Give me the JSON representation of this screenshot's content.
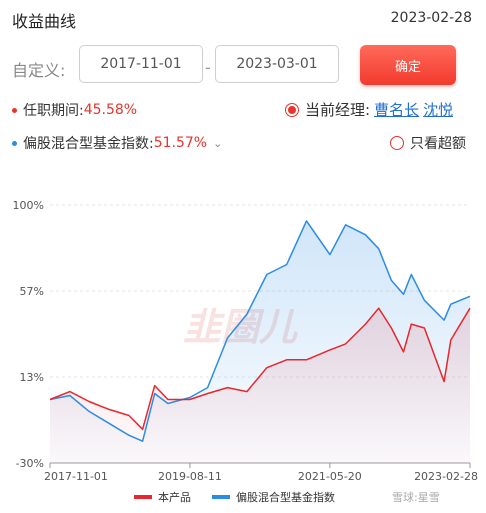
{
  "header": {
    "title": "收益曲线",
    "date": "2023-02-28"
  },
  "filter": {
    "label": "自定义:",
    "start_date": "2017-11-01",
    "end_date": "2023-03-01",
    "confirm_label": "确定"
  },
  "stats": {
    "tenure_label": "任职期间:",
    "tenure_value": "45.58%",
    "benchmark_label": "偏股混合型基金指数:",
    "benchmark_value": "51.57%",
    "current_manager_label": "当前经理:",
    "managers": [
      "曹名长",
      "沈悦"
    ],
    "only_exceed_label": "只看超额"
  },
  "colors": {
    "accent": "#e8342b",
    "product": "#e8262e",
    "benchmark": "#2b8ce6"
  },
  "watermark": "韭圈儿",
  "footer": {
    "brand": "雪球:星雪"
  },
  "chart_data": {
    "type": "line",
    "x_tick_labels": [
      "2017-11-01",
      "2019-08-11",
      "2021-05-20",
      "2023-02-28"
    ],
    "y_tick_labels": [
      "100%",
      "57%",
      "13%",
      "-30%"
    ],
    "ylim": [
      -30,
      100
    ],
    "grid": true,
    "legend_position": "bottom",
    "series": [
      {
        "name": "本产品",
        "color": "#e8262e",
        "x": [
          "2017-11-01",
          "2018-02-01",
          "2018-05-01",
          "2018-08-01",
          "2018-11-01",
          "2019-01-04",
          "2019-03-01",
          "2019-05-01",
          "2019-08-11",
          "2019-11-01",
          "2020-02-01",
          "2020-05-01",
          "2020-08-01",
          "2020-11-01",
          "2021-02-01",
          "2021-05-20",
          "2021-08-01",
          "2021-11-01",
          "2022-01-01",
          "2022-03-01",
          "2022-04-26",
          "2022-06-01",
          "2022-08-01",
          "2022-10-31",
          "2022-12-01",
          "2023-02-28"
        ],
        "values": [
          2,
          6,
          1,
          -3,
          -6,
          -13,
          9,
          2,
          2,
          5,
          8,
          6,
          18,
          22,
          22,
          27,
          30,
          40,
          48,
          38,
          26,
          40,
          38,
          11,
          32,
          48
        ]
      },
      {
        "name": "偏股混合型基金指数",
        "color": "#2b8ce6",
        "x": [
          "2017-11-01",
          "2018-02-01",
          "2018-05-01",
          "2018-08-01",
          "2018-11-01",
          "2019-01-04",
          "2019-03-01",
          "2019-05-01",
          "2019-08-11",
          "2019-11-01",
          "2020-02-01",
          "2020-05-01",
          "2020-08-01",
          "2020-11-01",
          "2021-02-01",
          "2021-05-20",
          "2021-08-01",
          "2021-11-01",
          "2022-01-01",
          "2022-03-01",
          "2022-04-26",
          "2022-06-01",
          "2022-08-01",
          "2022-10-31",
          "2022-12-01",
          "2023-02-28"
        ],
        "values": [
          2,
          4,
          -4,
          -10,
          -16,
          -19,
          5,
          0,
          3,
          8,
          33,
          45,
          65,
          70,
          92,
          75,
          90,
          85,
          78,
          62,
          55,
          65,
          52,
          42,
          50,
          54
        ]
      }
    ]
  }
}
